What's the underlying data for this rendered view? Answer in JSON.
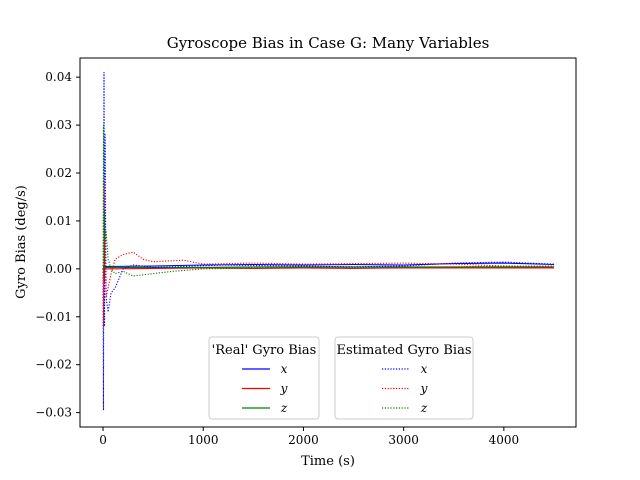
{
  "chart_data": {
    "type": "line",
    "title": "Gyroscope Bias in Case G: Many Variables",
    "xlabel": "Time (s)",
    "ylabel": "Gyro Bias (deg/s)",
    "xlim": [
      -230,
      4720
    ],
    "ylim": [
      -0.033,
      0.044
    ],
    "xticks": [
      0,
      1000,
      2000,
      3000,
      4000
    ],
    "xtick_labels": [
      "0",
      "1000",
      "2000",
      "3000",
      "4000"
    ],
    "yticks": [
      -0.03,
      -0.02,
      -0.01,
      0.0,
      0.01,
      0.02,
      0.03,
      0.04
    ],
    "ytick_labels": [
      "−0.03",
      "−0.02",
      "−0.01",
      "0.00",
      "0.01",
      "0.02",
      "0.03",
      "0.04"
    ],
    "grid": false,
    "legends": [
      {
        "title": "'Real' Gyro Bias",
        "placement": "lower-center-left",
        "entries": [
          {
            "label": "x",
            "color": "#0000ff",
            "style": "solid"
          },
          {
            "label": "y",
            "color": "#ff0000",
            "style": "solid"
          },
          {
            "label": "z",
            "color": "#008000",
            "style": "solid"
          }
        ]
      },
      {
        "title": "Estimated Gyro Bias",
        "placement": "lower-center-right",
        "entries": [
          {
            "label": "x",
            "color": "#0000ff",
            "style": "dotted"
          },
          {
            "label": "y",
            "color": "#ff0000",
            "style": "dotted"
          },
          {
            "label": "z",
            "color": "#008000",
            "style": "dotted"
          }
        ]
      }
    ],
    "series": [
      {
        "axis": "x",
        "kind": "real",
        "color": "#0000ff",
        "style": "solid",
        "x": [
          0,
          500,
          1000,
          1500,
          2000,
          2500,
          3000,
          3500,
          4000,
          4500
        ],
        "y": [
          0.0005,
          0.0006,
          0.0008,
          0.0009,
          0.0008,
          0.0009,
          0.0008,
          0.0011,
          0.0012,
          0.0009
        ]
      },
      {
        "axis": "y",
        "kind": "real",
        "color": "#ff0000",
        "style": "solid",
        "x": [
          0,
          500,
          1000,
          1500,
          2000,
          2500,
          3000,
          3500,
          4000,
          4500
        ],
        "y": [
          0.0,
          0.0001,
          0.0002,
          0.0001,
          0.0002,
          0.0001,
          0.0002,
          0.0002,
          0.0002,
          0.0002
        ]
      },
      {
        "axis": "z",
        "kind": "real",
        "color": "#008000",
        "style": "solid",
        "x": [
          0,
          500,
          1000,
          1500,
          2000,
          2500,
          3000,
          3500,
          4000,
          4500
        ],
        "y": [
          0.0003,
          0.0003,
          0.0003,
          0.0004,
          0.0004,
          0.0004,
          0.0004,
          0.0004,
          0.0004,
          0.0004
        ]
      },
      {
        "axis": "x",
        "kind": "estimated",
        "color": "#0000ff",
        "style": "dotted",
        "x": [
          0,
          5,
          10,
          15,
          20,
          30,
          50,
          80,
          120,
          200,
          300,
          500,
          800,
          1200,
          1500,
          2000,
          2500,
          3000,
          3500,
          4000,
          4500
        ],
        "y": [
          0.0,
          -0.0295,
          0.041,
          -0.012,
          0.028,
          -0.006,
          -0.009,
          -0.005,
          -0.004,
          0.0,
          0.0008,
          0.0003,
          0.0005,
          0.0008,
          0.0007,
          0.0006,
          0.0004,
          0.0006,
          0.0012,
          0.0014,
          0.001
        ]
      },
      {
        "axis": "y",
        "kind": "estimated",
        "color": "#ff0000",
        "style": "dotted",
        "x": [
          0,
          5,
          10,
          15,
          20,
          30,
          50,
          80,
          120,
          200,
          300,
          400,
          500,
          800,
          1000,
          1500,
          2000,
          2500,
          3000,
          3500,
          4000,
          4500
        ],
        "y": [
          0.0,
          -0.012,
          0.018,
          -0.003,
          0.008,
          -0.006,
          -0.004,
          -0.001,
          0.002,
          0.003,
          0.0035,
          0.002,
          0.0015,
          0.0018,
          0.001,
          0.0012,
          0.001,
          0.0011,
          0.0012,
          0.001,
          0.0006,
          0.0004
        ]
      },
      {
        "axis": "z",
        "kind": "estimated",
        "color": "#008000",
        "style": "dotted",
        "x": [
          0,
          5,
          10,
          15,
          20,
          30,
          50,
          80,
          120,
          200,
          300,
          500,
          700,
          1000,
          1500,
          2000,
          2500,
          3000,
          3500,
          4000,
          4500
        ],
        "y": [
          0.0,
          0.03,
          -0.002,
          0.012,
          0.006,
          0.008,
          0.002,
          0.0,
          -0.001,
          -0.0005,
          -0.0015,
          -0.001,
          -0.0005,
          0.0,
          0.0002,
          0.0003,
          0.0002,
          0.0003,
          0.0004,
          0.0006,
          0.0006
        ]
      }
    ]
  }
}
